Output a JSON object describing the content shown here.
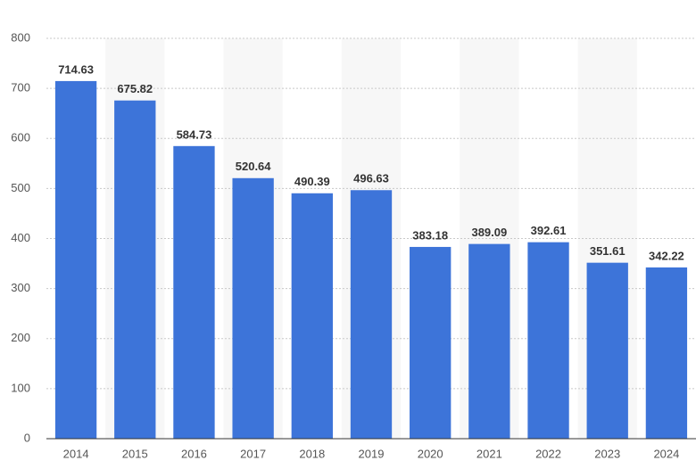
{
  "chart_data": {
    "type": "bar",
    "categories": [
      "2014",
      "2015",
      "2016",
      "2017",
      "2018",
      "2019",
      "2020",
      "2021",
      "2022",
      "2023",
      "2024"
    ],
    "values": [
      714.63,
      675.82,
      584.73,
      520.64,
      490.39,
      496.63,
      383.18,
      389.09,
      392.61,
      351.61,
      342.22
    ],
    "color": "#3d74d9",
    "ylim": [
      0,
      800
    ],
    "yticks": [
      0,
      100,
      200,
      300,
      400,
      500,
      600,
      700,
      800
    ],
    "grid": true
  }
}
